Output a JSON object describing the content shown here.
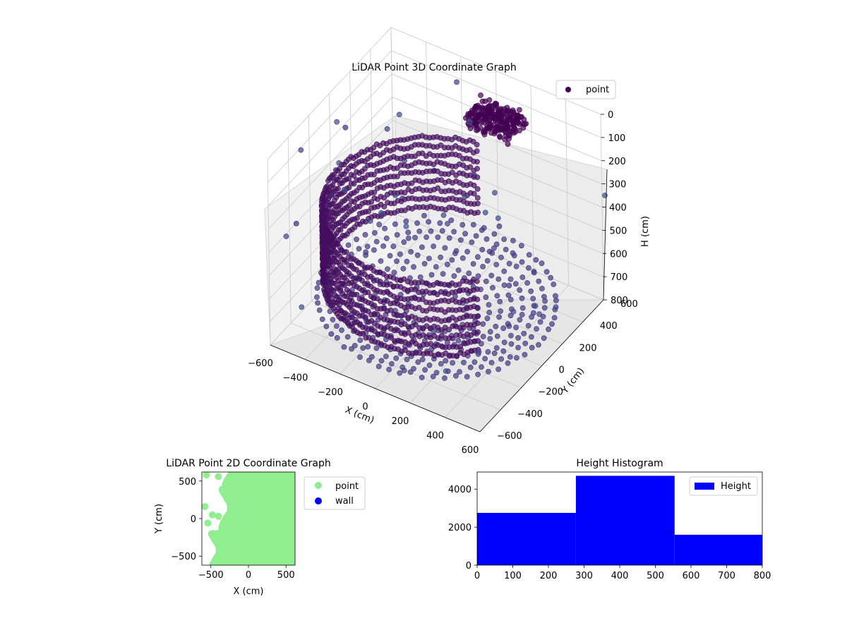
{
  "chart_data": [
    {
      "type": "scatter",
      "title": "LiDAR Point 3D Coordinate Graph",
      "projection": "3d",
      "xlabel": "X (cm)",
      "ylabel": "Y (cm)",
      "zlabel": "H (cm)",
      "xlim": [
        -600,
        600
      ],
      "ylim": [
        -600,
        600
      ],
      "zlim": [
        0,
        800
      ],
      "z_inverted": true,
      "x_ticks": [
        "−600",
        "−400",
        "−200",
        "0",
        "200",
        "400",
        "600"
      ],
      "y_ticks": [
        "−600",
        "−400",
        "−200",
        "0",
        "200",
        "400",
        "600"
      ],
      "z_ticks": [
        "0",
        "100",
        "200",
        "300",
        "400",
        "500",
        "600",
        "700",
        "800"
      ],
      "grid": true,
      "legend": {
        "position": "top-right",
        "entries": [
          {
            "label": "point",
            "color": "#440154"
          }
        ]
      },
      "colormap": "viridis",
      "description_of_points": "circular rings of points centred near the origin with a taller cylindrical wall at radius ~600 cm and a dense cluster near the far side"
    },
    {
      "type": "scatter",
      "title": "LiDAR Point 2D Coordinate Graph",
      "xlabel": "X (cm)",
      "ylabel": "Y (cm)",
      "xlim": [
        -620,
        620
      ],
      "ylim": [
        -620,
        620
      ],
      "x_ticks": [
        "−500",
        "0",
        "500"
      ],
      "y_ticks": [
        "−500",
        "0",
        "500"
      ],
      "legend": {
        "position": "outside-right",
        "entries": [
          {
            "label": "point",
            "color": "#90ee90"
          },
          {
            "label": "wall",
            "color": "#0000ff"
          }
        ]
      }
    },
    {
      "type": "bar",
      "title": "Height Histogram",
      "bins": [
        {
          "from": 0,
          "to": 277,
          "count": 2750
        },
        {
          "from": 277,
          "to": 554,
          "count": 4700
        },
        {
          "from": 554,
          "to": 831,
          "count": 1600
        }
      ],
      "xlim": [
        0,
        800
      ],
      "ylim": [
        0,
        4900
      ],
      "x_ticks": [
        "0",
        "100",
        "200",
        "300",
        "400",
        "500",
        "600",
        "700",
        "800"
      ],
      "y_ticks": [
        "0",
        "2000",
        "4000"
      ],
      "legend": {
        "position": "top-right",
        "entries": [
          {
            "label": "Height",
            "color": "#0000ff"
          }
        ]
      }
    }
  ]
}
